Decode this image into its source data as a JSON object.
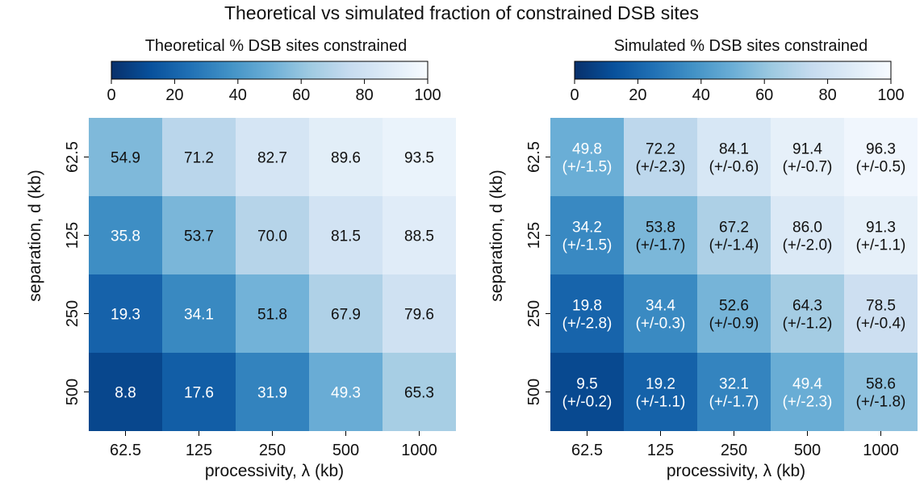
{
  "title": "Theoretical vs simulated fraction of constrained DSB sites",
  "chart_data": [
    {
      "type": "heatmap",
      "title": "Theoretical % DSB sites constrained",
      "xlabel": "processivity, λ (kb)",
      "ylabel": "separation, d (kb)",
      "x": [
        "62.5",
        "125",
        "250",
        "500",
        "1000"
      ],
      "y": [
        "62.5",
        "125",
        "250",
        "500"
      ],
      "values": [
        [
          54.9,
          71.2,
          82.7,
          89.6,
          93.5
        ],
        [
          35.8,
          53.7,
          70.0,
          81.5,
          88.5
        ],
        [
          19.3,
          34.1,
          51.8,
          67.9,
          79.6
        ],
        [
          8.8,
          17.6,
          31.9,
          49.3,
          65.3
        ]
      ],
      "labels": [
        [
          "54.9",
          "71.2",
          "82.7",
          "89.6",
          "93.5"
        ],
        [
          "35.8",
          "53.7",
          "70.0",
          "81.5",
          "88.5"
        ],
        [
          "19.3",
          "34.1",
          "51.8",
          "67.9",
          "79.6"
        ],
        [
          "8.8",
          "17.6",
          "31.9",
          "49.3",
          "65.3"
        ]
      ],
      "colorbar": {
        "range": [
          0,
          100
        ],
        "ticks": [
          "0",
          "20",
          "40",
          "60",
          "80",
          "100"
        ],
        "colormap": "Blues"
      }
    },
    {
      "type": "heatmap",
      "title": "Simulated % DSB sites constrained",
      "xlabel": "processivity, λ (kb)",
      "ylabel": "separation, d (kb)",
      "x": [
        "62.5",
        "125",
        "250",
        "500",
        "1000"
      ],
      "y": [
        "62.5",
        "125",
        "250",
        "500"
      ],
      "values": [
        [
          49.8,
          72.2,
          84.1,
          91.4,
          96.3
        ],
        [
          34.2,
          53.8,
          67.2,
          86.0,
          91.3
        ],
        [
          19.8,
          34.4,
          52.6,
          64.3,
          78.5
        ],
        [
          9.5,
          19.2,
          32.1,
          49.4,
          58.6
        ]
      ],
      "labels": [
        [
          "49.8",
          "72.2",
          "84.1",
          "91.4",
          "96.3"
        ],
        [
          "34.2",
          "53.8",
          "67.2",
          "86.0",
          "91.3"
        ],
        [
          "19.8",
          "34.4",
          "52.6",
          "64.3",
          "78.5"
        ],
        [
          "9.5",
          "19.2",
          "32.1",
          "49.4",
          "58.6"
        ]
      ],
      "errors": [
        [
          "(+/-1.5)",
          "(+/-2.3)",
          "(+/-0.6)",
          "(+/-0.7)",
          "(+/-0.5)"
        ],
        [
          "(+/-1.5)",
          "(+/-1.7)",
          "(+/-1.4)",
          "(+/-2.0)",
          "(+/-1.1)"
        ],
        [
          "(+/-2.8)",
          "(+/-0.3)",
          "(+/-0.9)",
          "(+/-1.2)",
          "(+/-0.4)"
        ],
        [
          "(+/-0.2)",
          "(+/-1.1)",
          "(+/-1.7)",
          "(+/-2.3)",
          "(+/-1.8)"
        ]
      ],
      "colorbar": {
        "range": [
          0,
          100
        ],
        "ticks": [
          "0",
          "20",
          "40",
          "60",
          "80",
          "100"
        ],
        "colormap": "Blues"
      }
    }
  ]
}
